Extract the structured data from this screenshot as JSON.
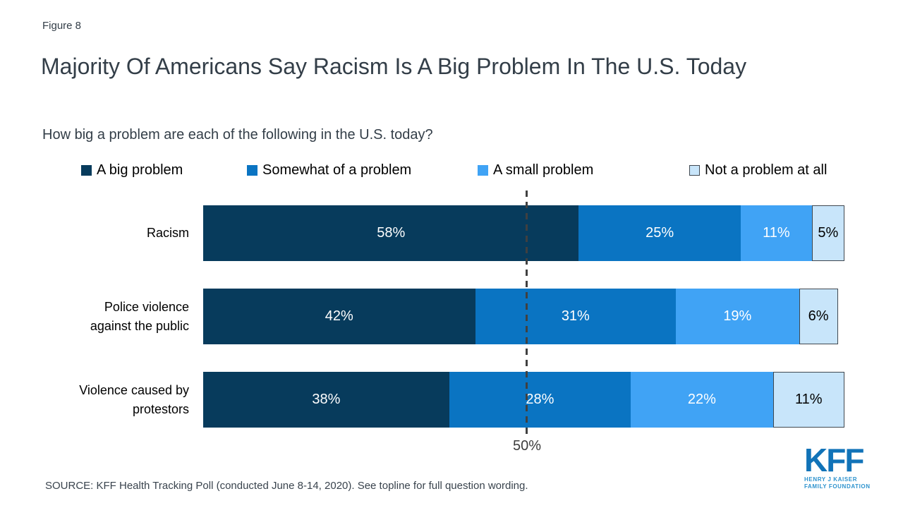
{
  "figure_label": "Figure 8",
  "title": "Majority Of Americans Say Racism Is A Big Problem In The U.S. Today",
  "subtitle": "How big a problem are each of the following in the U.S. today?",
  "source": "SOURCE: KFF Health Tracking Poll (conducted June 8-14, 2020). See topline for full question wording.",
  "reference_line": {
    "value": 50,
    "label": "50%"
  },
  "chart_data": {
    "type": "bar",
    "orientation": "horizontal",
    "stacked": true,
    "xlim": [
      0,
      100
    ],
    "value_suffix": "%",
    "legend_position": "top",
    "grid": false,
    "categories": [
      "Racism",
      "Police violence against the public",
      "Violence caused by protestors"
    ],
    "series": [
      {
        "name": "A big problem",
        "color": "#073B5C",
        "text_color": "#FFFFFF",
        "border": null,
        "values": [
          58,
          42,
          38
        ]
      },
      {
        "name": "Somewhat of a problem",
        "color": "#0A74C2",
        "text_color": "#FFFFFF",
        "border": null,
        "values": [
          25,
          31,
          28
        ]
      },
      {
        "name": "A small problem",
        "color": "#40A3F5",
        "text_color": "#FFFFFF",
        "border": null,
        "values": [
          11,
          19,
          22
        ]
      },
      {
        "name": "Not a problem at all",
        "color": "#C8E5FA",
        "text_color": "#000000",
        "border": "#404850",
        "values": [
          5,
          6,
          11
        ]
      }
    ]
  },
  "logo": {
    "name": "KFF",
    "line1": "HENRY J KAISER",
    "line2": "FAMILY FOUNDATION"
  }
}
